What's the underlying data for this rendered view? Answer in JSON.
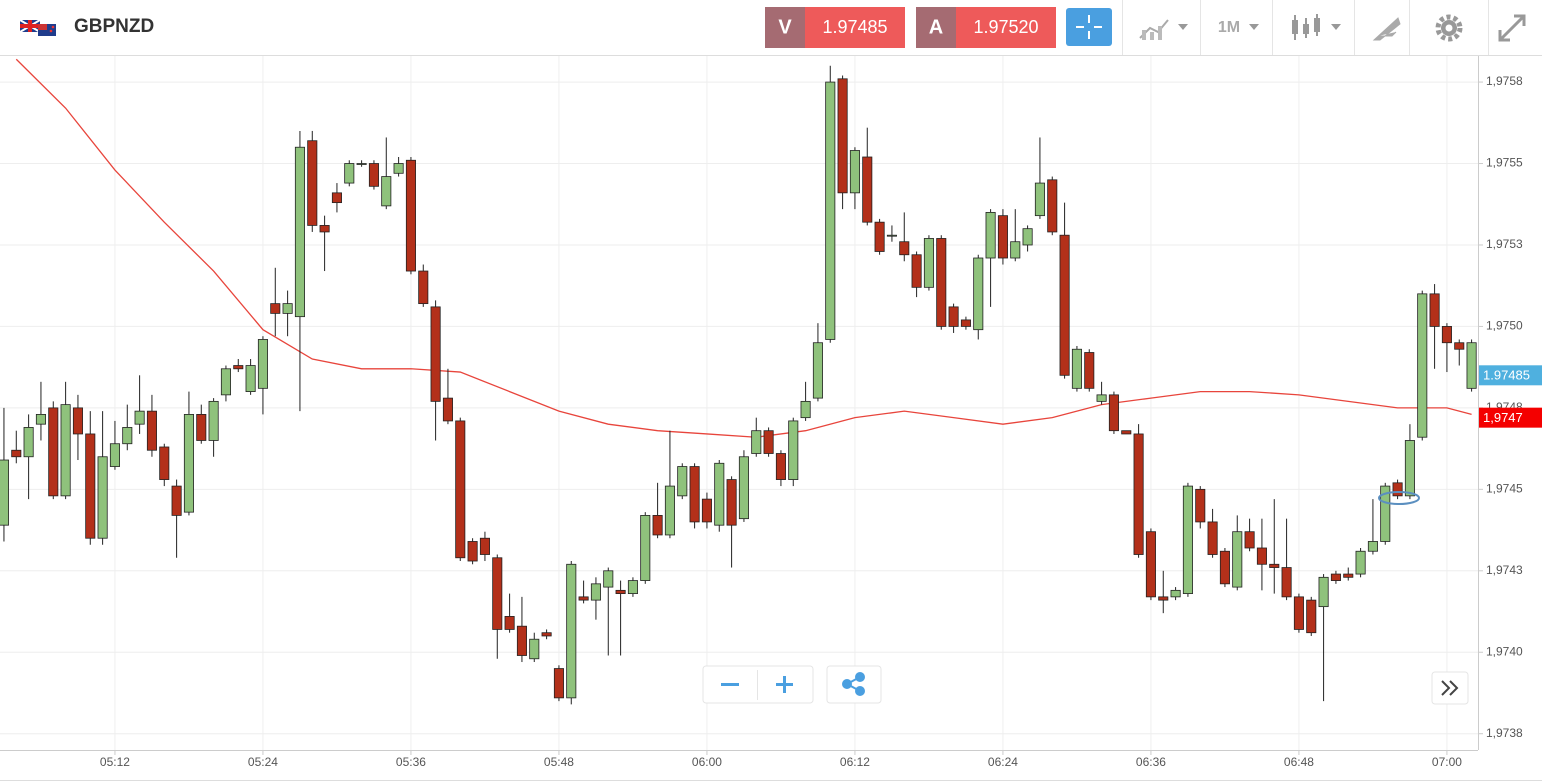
{
  "toolbar": {
    "symbol": "GBPNZD",
    "sell": {
      "label": "V",
      "price": "1.97485"
    },
    "buy": {
      "label": "A",
      "price": "1.97520"
    },
    "timeframe": "1M"
  },
  "chart_data": {
    "type": "candlestick",
    "x": [
      303,
      304,
      305,
      306,
      307,
      308,
      309,
      310,
      311,
      312,
      313,
      314,
      315,
      316,
      317,
      318,
      319,
      320,
      321,
      322,
      323,
      324,
      325,
      326,
      327,
      328,
      329,
      330,
      331,
      332,
      333,
      334,
      335,
      336,
      337,
      338,
      339,
      340,
      341,
      342,
      343,
      344,
      345,
      346,
      347,
      348,
      349,
      350,
      351,
      352,
      353,
      354,
      355,
      356,
      357,
      358,
      359,
      360,
      361,
      362,
      363,
      364,
      365,
      366,
      367,
      368,
      369,
      370,
      371,
      372,
      373,
      374,
      375,
      376,
      377,
      378,
      379,
      380,
      381,
      382,
      383,
      384,
      385,
      386,
      387,
      388,
      389,
      390,
      391,
      392,
      393,
      394,
      395,
      396,
      397,
      398,
      399,
      400,
      401,
      402,
      403,
      404,
      405,
      406,
      407,
      408,
      409,
      410,
      411,
      412,
      413,
      414,
      415,
      416,
      417,
      418,
      419,
      420,
      421,
      422
    ],
    "open": [
      1.97439,
      1.97462,
      1.9746,
      1.9747,
      1.97475,
      1.97448,
      1.97475,
      1.97467,
      1.97435,
      1.97457,
      1.97464,
      1.9747,
      1.97474,
      1.97463,
      1.97451,
      1.97443,
      1.97473,
      1.97465,
      1.97479,
      1.97488,
      1.9748,
      1.97481,
      1.97507,
      1.97504,
      1.97503,
      1.97557,
      1.97531,
      1.97541,
      1.97544,
      1.9755,
      1.9755,
      1.97537,
      1.97547,
      1.97551,
      1.97517,
      1.97506,
      1.97478,
      1.97471,
      1.97434,
      1.97435,
      1.97429,
      1.97411,
      1.97408,
      1.97398,
      1.97406,
      1.97395,
      1.97386,
      1.97417,
      1.97416,
      1.9742,
      1.97419,
      1.97418,
      1.97422,
      1.97442,
      1.97436,
      1.97448,
      1.97457,
      1.97447,
      1.97439,
      1.97453,
      1.97441,
      1.97461,
      1.97468,
      1.97461,
      1.97453,
      1.97472,
      1.97478,
      1.97496,
      1.97576,
      1.97541,
      1.97552,
      1.97532,
      1.97528,
      1.97526,
      1.97522,
      1.97512,
      1.97527,
      1.97506,
      1.97502,
      1.97499,
      1.97521,
      1.97534,
      1.97521,
      1.97525,
      1.97534,
      1.97545,
      1.97528,
      1.97481,
      1.97492,
      1.97477,
      1.97479,
      1.97468,
      1.97467,
      1.97437,
      1.97417,
      1.97417,
      1.97418,
      1.9745,
      1.9744,
      1.97431,
      1.9742,
      1.97437,
      1.97432,
      1.97427,
      1.97426,
      1.97417,
      1.97416,
      1.97414,
      1.97424,
      1.97424,
      1.97424,
      1.97431,
      1.97434,
      1.97452,
      1.97448,
      1.97466,
      1.9751,
      1.975,
      1.97495,
      1.97481
    ],
    "high": [
      1.97475,
      1.97468,
      1.97473,
      1.97483,
      1.97477,
      1.97483,
      1.97479,
      1.97474,
      1.97474,
      1.97471,
      1.97476,
      1.97485,
      1.97479,
      1.97464,
      1.97453,
      1.9748,
      1.97476,
      1.97478,
      1.97488,
      1.9749,
      1.9749,
      1.97497,
      1.97518,
      1.97511,
      1.9756,
      1.9756,
      1.97534,
      1.97544,
      1.97551,
      1.97551,
      1.97551,
      1.97558,
      1.97552,
      1.97552,
      1.97519,
      1.97508,
      1.97487,
      1.97472,
      1.97435,
      1.97437,
      1.9743,
      1.97418,
      1.97417,
      1.97406,
      1.97407,
      1.97396,
      1.97428,
      1.97422,
      1.97423,
      1.97426,
      1.97422,
      1.97423,
      1.97443,
      1.97452,
      1.97468,
      1.97458,
      1.97458,
      1.97449,
      1.97459,
      1.97454,
      1.97462,
      1.97472,
      1.97469,
      1.97462,
      1.97472,
      1.97483,
      1.97501,
      1.9758,
      1.97577,
      1.97555,
      1.97561,
      1.97533,
      1.97531,
      1.97535,
      1.97523,
      1.97528,
      1.97528,
      1.97507,
      1.97503,
      1.97522,
      1.97536,
      1.97536,
      1.97536,
      1.97531,
      1.97558,
      1.97546,
      1.97538,
      1.97494,
      1.97493,
      1.97483,
      1.9748,
      1.97468,
      1.9747,
      1.97438,
      1.97425,
      1.9742,
      1.97452,
      1.97451,
      1.97444,
      1.97432,
      1.97442,
      1.97441,
      1.97441,
      1.97447,
      1.97441,
      1.97418,
      1.97417,
      1.97424,
      1.97425,
      1.97426,
      1.97432,
      1.97447,
      1.97452,
      1.97453,
      1.9747,
      1.97511,
      1.97513,
      1.97501,
      1.97496,
      1.97496
    ],
    "low": [
      1.97434,
      1.97458,
      1.97447,
      1.97465,
      1.97447,
      1.97447,
      1.97459,
      1.97433,
      1.97433,
      1.97456,
      1.97462,
      1.97467,
      1.9746,
      1.97451,
      1.97429,
      1.97442,
      1.97464,
      1.9746,
      1.97477,
      1.97486,
      1.97479,
      1.97473,
      1.97497,
      1.97497,
      1.97474,
      1.97529,
      1.97517,
      1.97535,
      1.97543,
      1.97549,
      1.97542,
      1.97536,
      1.97546,
      1.97516,
      1.97506,
      1.97465,
      1.9747,
      1.97428,
      1.97427,
      1.97428,
      1.97398,
      1.97406,
      1.97397,
      1.97397,
      1.97404,
      1.97385,
      1.97384,
      1.97415,
      1.9741,
      1.97399,
      1.97399,
      1.97417,
      1.97421,
      1.97435,
      1.97435,
      1.97447,
      1.97438,
      1.97438,
      1.97437,
      1.97426,
      1.9744,
      1.9746,
      1.9746,
      1.97451,
      1.97451,
      1.97471,
      1.97477,
      1.97495,
      1.97536,
      1.97536,
      1.97531,
      1.97522,
      1.97526,
      1.9752,
      1.97509,
      1.97511,
      1.97499,
      1.97498,
      1.97499,
      1.97496,
      1.97506,
      1.97519,
      1.9752,
      1.97523,
      1.97533,
      1.97528,
      1.97484,
      1.9748,
      1.9748,
      1.97476,
      1.97467,
      1.97467,
      1.97429,
      1.97416,
      1.97412,
      1.97416,
      1.97417,
      1.97438,
      1.97429,
      1.9742,
      1.97419,
      1.97431,
      1.97419,
      1.97418,
      1.97416,
      1.97406,
      1.97405,
      1.97385,
      1.97421,
      1.97422,
      1.97423,
      1.9743,
      1.97433,
      1.97447,
      1.97447,
      1.97465,
      1.97487,
      1.97486,
      1.97488,
      1.9748
    ],
    "close": [
      1.97459,
      1.9746,
      1.97469,
      1.97473,
      1.97448,
      1.97476,
      1.97467,
      1.97435,
      1.9746,
      1.97464,
      1.97469,
      1.97474,
      1.97462,
      1.97453,
      1.97442,
      1.97473,
      1.97465,
      1.97477,
      1.97487,
      1.97487,
      1.97488,
      1.97496,
      1.97504,
      1.97507,
      1.97555,
      1.97531,
      1.97529,
      1.97538,
      1.9755,
      1.9755,
      1.97543,
      1.97546,
      1.9755,
      1.97517,
      1.97507,
      1.97477,
      1.97471,
      1.97429,
      1.97428,
      1.9743,
      1.97407,
      1.97407,
      1.97399,
      1.97404,
      1.97405,
      1.97386,
      1.97427,
      1.97416,
      1.97421,
      1.97425,
      1.97418,
      1.97422,
      1.97442,
      1.97436,
      1.97451,
      1.97457,
      1.9744,
      1.9744,
      1.97458,
      1.97439,
      1.9746,
      1.97468,
      1.97461,
      1.97453,
      1.97471,
      1.97477,
      1.97495,
      1.97575,
      1.97541,
      1.97554,
      1.97532,
      1.97523,
      1.97528,
      1.97522,
      1.97512,
      1.97527,
      1.975,
      1.975,
      1.975,
      1.97521,
      1.97535,
      1.97521,
      1.97526,
      1.9753,
      1.97544,
      1.97529,
      1.97485,
      1.97493,
      1.97481,
      1.97479,
      1.97468,
      1.97467,
      1.9743,
      1.97417,
      1.97416,
      1.97419,
      1.97451,
      1.9744,
      1.9743,
      1.97421,
      1.97437,
      1.97432,
      1.97427,
      1.97426,
      1.97417,
      1.97407,
      1.97406,
      1.97423,
      1.97422,
      1.97423,
      1.97431,
      1.97434,
      1.97451,
      1.97448,
      1.97465,
      1.9751,
      1.975,
      1.97495,
      1.97493,
      1.97495
    ],
    "up_color": "#8fc27c",
    "down_color": "#b3301a",
    "overlay": {
      "type": "line",
      "color": "#e8453c",
      "x": [
        304,
        308,
        312,
        316,
        320,
        324,
        328,
        332,
        336,
        340,
        344,
        348,
        352,
        356,
        360,
        364,
        368,
        372,
        376,
        380,
        384,
        388,
        392,
        396,
        400,
        404,
        408,
        412,
        416,
        420,
        422
      ],
      "values": [
        1.97582,
        1.97567,
        1.97548,
        1.97532,
        1.97517,
        1.97499,
        1.9749,
        1.97487,
        1.97487,
        1.97486,
        1.9748,
        1.97474,
        1.9747,
        1.97468,
        1.97467,
        1.97466,
        1.97468,
        1.97472,
        1.97474,
        1.97472,
        1.9747,
        1.97472,
        1.97476,
        1.97478,
        1.9748,
        1.9748,
        1.97479,
        1.97477,
        1.97475,
        1.97475,
        1.97473
      ]
    },
    "xlim": [
      302.68,
      422.52
    ],
    "xticks": [
      {
        "value": 312,
        "label": "05:12"
      },
      {
        "value": 324,
        "label": "05:24"
      },
      {
        "value": 336,
        "label": "05:36"
      },
      {
        "value": 348,
        "label": "05:48"
      },
      {
        "value": 360,
        "label": "06:00"
      },
      {
        "value": 372,
        "label": "06:12"
      },
      {
        "value": 384,
        "label": "06:24"
      },
      {
        "value": 396,
        "label": "06:36"
      },
      {
        "value": 408,
        "label": "06:48"
      },
      {
        "value": 420,
        "label": "07:00"
      }
    ],
    "ylim": [
      1.9737,
      1.97583
    ],
    "yticks": [
      {
        "value": 1.97375,
        "label": "1,9738"
      },
      {
        "value": 1.974,
        "label": "1,9740"
      },
      {
        "value": 1.97425,
        "label": "1,9743"
      },
      {
        "value": 1.9745,
        "label": "1,9745"
      },
      {
        "value": 1.97475,
        "label": "1,9748"
      },
      {
        "value": 1.975,
        "label": "1,9750"
      },
      {
        "value": 1.97525,
        "label": "1,9753"
      },
      {
        "value": 1.9755,
        "label": "1,9755"
      },
      {
        "value": 1.97575,
        "label": "1,9758"
      }
    ],
    "price_tags": [
      {
        "value": 1.97485,
        "color": "#4fb0df"
      },
      {
        "value": 1.97472,
        "label": "1,9747",
        "color": "#f40000"
      }
    ],
    "grid": true
  }
}
